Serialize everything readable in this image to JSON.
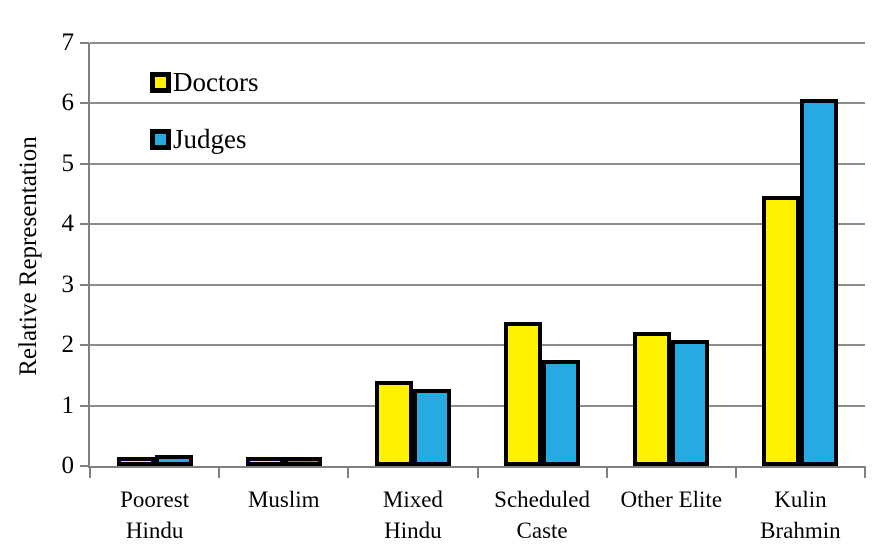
{
  "chart_data": {
    "type": "bar",
    "title": "",
    "xlabel": "",
    "ylabel": "Relative Representation",
    "ylim": [
      0,
      7
    ],
    "yticks": [
      0,
      1,
      2,
      3,
      4,
      5,
      6,
      7
    ],
    "grid": "horizontal",
    "legend_position": "top-left-inside",
    "categories": [
      "Poorest Hindu",
      "Muslim",
      "Mixed Hindu",
      "Scheduled Caste",
      "Other Elite",
      "Kulin Brahmin"
    ],
    "category_label_lines": [
      [
        "Poorest",
        "Hindu"
      ],
      [
        "Muslim"
      ],
      [
        "Mixed",
        "Hindu"
      ],
      [
        "Scheduled",
        "Caste"
      ],
      [
        "Other Elite"
      ],
      [
        "Kulin",
        "Brahmin"
      ]
    ],
    "series": [
      {
        "name": "Doctors",
        "color": "#FFF200",
        "values": [
          0.07,
          0.11,
          1.4,
          2.38,
          2.22,
          4.47
        ]
      },
      {
        "name": "Judges",
        "color": "#27AAE1",
        "values": [
          0.18,
          0.13,
          1.27,
          1.76,
          2.08,
          6.07
        ]
      }
    ],
    "colors": {
      "background": "#FFFFFF",
      "bar_border": "#000000",
      "gridline": "#8C8C8C",
      "axis": "#7F7F7F",
      "text": "#000000"
    }
  }
}
